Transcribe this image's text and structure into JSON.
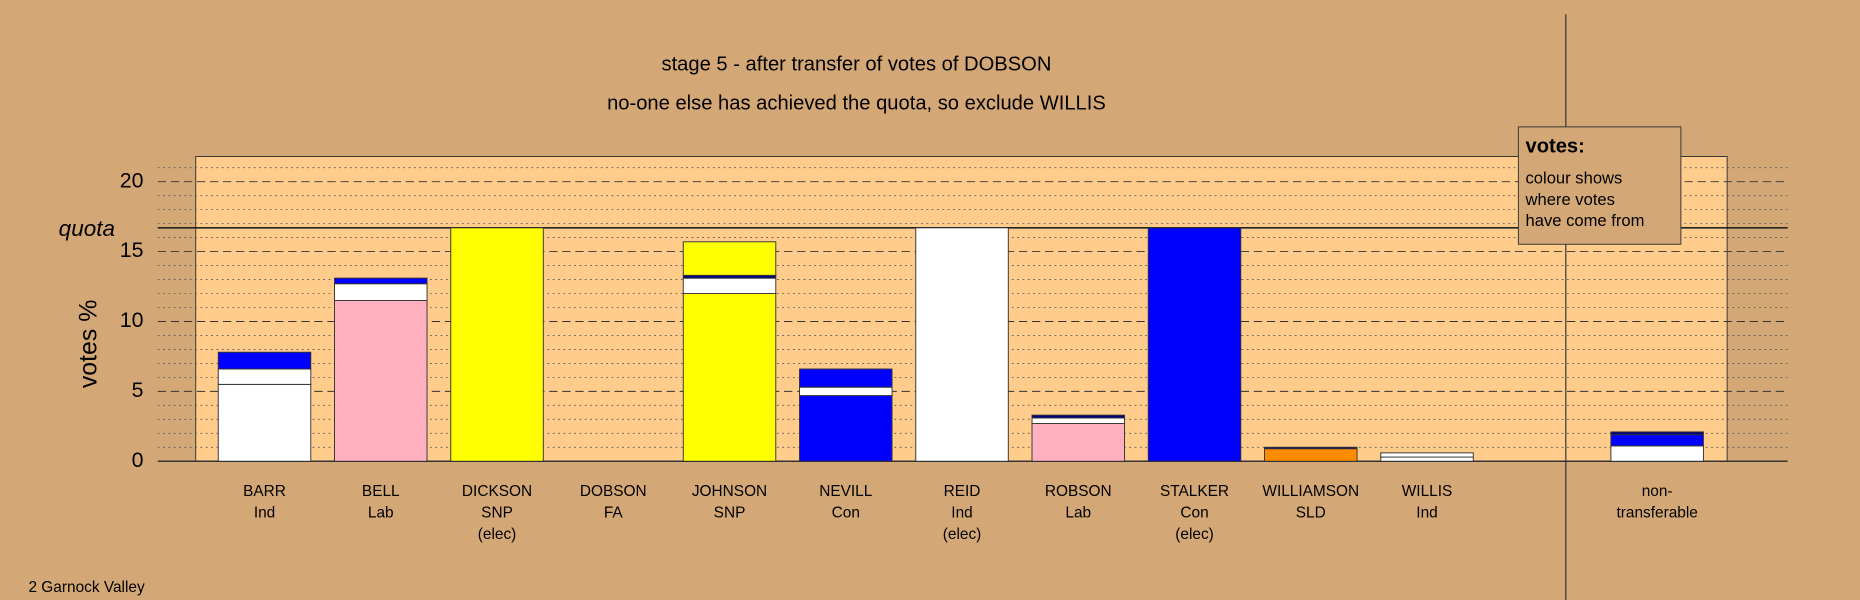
{
  "chart_data": {
    "type": "stacked-bar",
    "title": "stage 5 - after transfer of votes of DOBSON",
    "subtitle": "no-one else has achieved the quota, so exclude WILLIS",
    "ylabel": "votes %",
    "footer": "2 Garnock Valley",
    "legend": {
      "title": "votes:",
      "lines": [
        "colour shows",
        "where votes",
        "have come from"
      ]
    },
    "quota": {
      "label": "quota",
      "value": 16.7
    },
    "ylim": [
      0,
      21.8
    ],
    "yticks": [
      0,
      5,
      10,
      15,
      20
    ],
    "minor_yticks": [
      1,
      2,
      3,
      4,
      6,
      7,
      8,
      9,
      11,
      12,
      13,
      14,
      16,
      17,
      18,
      19,
      21
    ],
    "categories": [
      [
        "BARR",
        "Ind"
      ],
      [
        "BELL",
        "Lab"
      ],
      [
        "DICKSON",
        "SNP",
        "(elec)"
      ],
      [
        "DOBSON",
        "FA"
      ],
      [
        "JOHNSON",
        "SNP"
      ],
      [
        "NEVILL",
        "Con"
      ],
      [
        "REID",
        "Ind",
        "(elec)"
      ],
      [
        "ROBSON",
        "Lab"
      ],
      [
        "STALKER",
        "Con",
        "(elec)"
      ],
      [
        "WILLIAMSON",
        "SLD"
      ],
      [
        "WILLIS",
        "Ind"
      ],
      [
        "non-",
        "transferable"
      ]
    ],
    "stacks": [
      [
        {
          "color": "#ffffff",
          "value": 5.5
        },
        {
          "color": "#ffffff",
          "value": 1.1
        },
        {
          "color": "#0000ff",
          "value": 1.2
        }
      ],
      [
        {
          "color": "#ffb0c0",
          "value": 11.5
        },
        {
          "color": "#ffffff",
          "value": 1.2
        },
        {
          "color": "#0000ff",
          "value": 0.4
        }
      ],
      [
        {
          "color": "#ffff00",
          "value": 16.7
        }
      ],
      [],
      [
        {
          "color": "#ffff00",
          "value": 12.0
        },
        {
          "color": "#ffffff",
          "value": 1.1
        },
        {
          "color": "#000080",
          "value": 0.2
        },
        {
          "color": "#ffff00",
          "value": 2.4
        }
      ],
      [
        {
          "color": "#0000ff",
          "value": 4.7
        },
        {
          "color": "#ffffff",
          "value": 0.6
        },
        {
          "color": "#0000ff",
          "value": 1.3
        }
      ],
      [
        {
          "color": "#ffffff",
          "value": 16.7
        }
      ],
      [
        {
          "color": "#ffb0c0",
          "value": 2.7
        },
        {
          "color": "#ffffff",
          "value": 0.4
        },
        {
          "color": "#000080",
          "value": 0.2
        }
      ],
      [
        {
          "color": "#0000ff",
          "value": 16.7
        }
      ],
      [
        {
          "color": "#ff8c00",
          "value": 0.9
        },
        {
          "color": "#000080",
          "value": 0.1
        }
      ],
      [
        {
          "color": "#ffffff",
          "value": 0.3
        },
        {
          "color": "#ffffff",
          "value": 0.3
        }
      ],
      [
        {
          "color": "#ffffff",
          "value": 1.1
        },
        {
          "color": "#0000ff",
          "value": 0.8
        },
        {
          "color": "#000080",
          "value": 0.2
        }
      ]
    ]
  }
}
